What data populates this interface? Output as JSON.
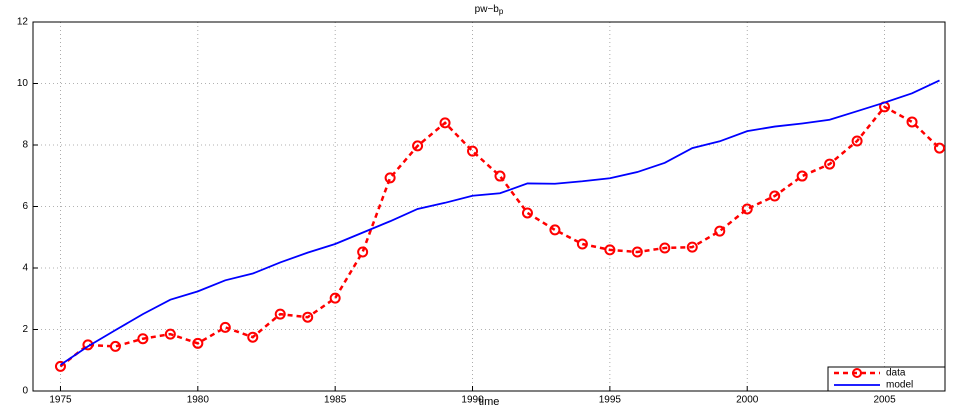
{
  "chart_data": {
    "type": "line",
    "title": "pw−b",
    "title_subscript": "p",
    "x_label": "time",
    "x": [
      1975,
      1976,
      1977,
      1978,
      1979,
      1980,
      1981,
      1982,
      1983,
      1984,
      1985,
      1986,
      1987,
      1988,
      1989,
      1990,
      1991,
      1992,
      1993,
      1994,
      1995,
      1996,
      1997,
      1998,
      1999,
      2000,
      2001,
      2002,
      2003,
      2004,
      2005,
      2006,
      2007
    ],
    "series": [
      {
        "name": "data",
        "color": "#ff0000",
        "dashed": true,
        "markers": true,
        "values": [
          0.8,
          1.5,
          1.45,
          1.7,
          1.85,
          1.55,
          2.07,
          1.75,
          2.5,
          2.4,
          3.02,
          4.52,
          6.93,
          7.97,
          8.72,
          7.8,
          6.99,
          5.79,
          5.24,
          4.78,
          4.59,
          4.52,
          4.65,
          4.68,
          5.2,
          5.92,
          6.34,
          6.99,
          7.38,
          8.13,
          9.24,
          8.75,
          7.9
        ]
      },
      {
        "name": "model",
        "color": "#0000ff",
        "dashed": false,
        "markers": false,
        "values": [
          0.85,
          1.45,
          1.98,
          2.5,
          2.97,
          3.24,
          3.6,
          3.82,
          4.18,
          4.5,
          4.78,
          5.15,
          5.52,
          5.92,
          6.12,
          6.35,
          6.43,
          6.75,
          6.74,
          6.82,
          6.92,
          7.12,
          7.42,
          7.9,
          8.12,
          8.45,
          8.6,
          8.7,
          8.82,
          9.1,
          9.38,
          9.68,
          10.1
        ]
      }
    ],
    "xlim": [
      1974,
      2007.2
    ],
    "xticks": [
      1975,
      1980,
      1985,
      1990,
      1995,
      2000,
      2005
    ],
    "ylim": [
      0,
      12
    ],
    "yticks": [
      0,
      2,
      4,
      6,
      8,
      10,
      12
    ],
    "grid": true,
    "legend": "bottom-right"
  }
}
